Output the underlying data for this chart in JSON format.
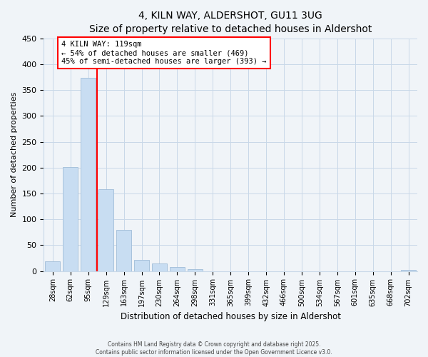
{
  "title": "4, KILN WAY, ALDERSHOT, GU11 3UG",
  "subtitle": "Size of property relative to detached houses in Aldershot",
  "xlabel": "Distribution of detached houses by size in Aldershot",
  "ylabel": "Number of detached properties",
  "bar_labels": [
    "28sqm",
    "62sqm",
    "95sqm",
    "129sqm",
    "163sqm",
    "197sqm",
    "230sqm",
    "264sqm",
    "298sqm",
    "331sqm",
    "365sqm",
    "399sqm",
    "432sqm",
    "466sqm",
    "500sqm",
    "534sqm",
    "567sqm",
    "601sqm",
    "635sqm",
    "668sqm",
    "702sqm"
  ],
  "bar_values": [
    19,
    201,
    374,
    158,
    79,
    22,
    15,
    8,
    3,
    0,
    0,
    0,
    0,
    0,
    0,
    0,
    0,
    0,
    0,
    0,
    2
  ],
  "bar_color": "#c8ddf2",
  "bar_edge_color": "#a0bcd8",
  "vline_color": "red",
  "annotation_title": "4 KILN WAY: 119sqm",
  "annotation_line1": "← 54% of detached houses are smaller (469)",
  "annotation_line2": "45% of semi-detached houses are larger (393) →",
  "annotation_box_color": "white",
  "annotation_box_edge": "red",
  "ylim": [
    0,
    450
  ],
  "yticks": [
    0,
    50,
    100,
    150,
    200,
    250,
    300,
    350,
    400,
    450
  ],
  "footer1": "Contains HM Land Registry data © Crown copyright and database right 2025.",
  "footer2": "Contains public sector information licensed under the Open Government Licence v3.0.",
  "bg_color": "#f0f4f8",
  "grid_color": "#c8d8e8",
  "title_fontsize": 10,
  "subtitle_fontsize": 9
}
